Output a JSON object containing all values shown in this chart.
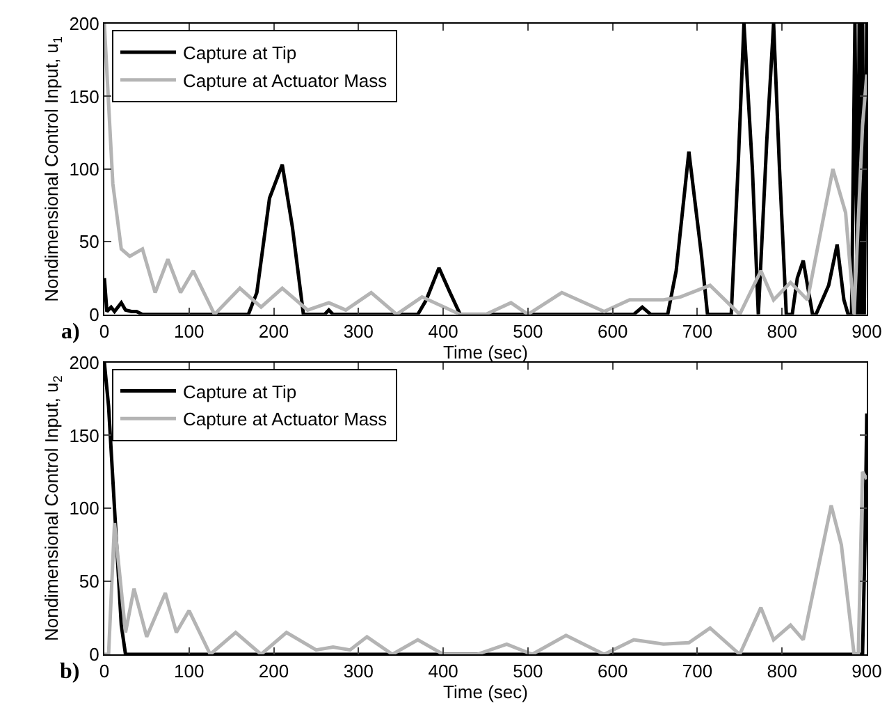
{
  "chart_data": [
    {
      "type": "line",
      "xlabel": "Time (sec)",
      "ylabel": "Nondimensional Control Input, u$_{1}$",
      "annotations": [
        "a)"
      ],
      "xlim": [
        0,
        900
      ],
      "xticks": [
        0,
        100,
        200,
        300,
        400,
        500,
        600,
        700,
        800,
        900
      ],
      "ylim": [
        0,
        200
      ],
      "yticks": [
        0,
        50,
        100,
        150,
        200
      ],
      "grid": false,
      "legend": "top left",
      "marker": "none",
      "line_style": "solid",
      "series": [
        {
          "name": "Capture at Tip",
          "color": "#000000",
          "x": [
            0,
            3,
            8,
            12,
            20,
            25,
            32,
            38,
            45,
            55,
            170,
            180,
            195,
            210,
            222,
            235,
            240,
            260,
            265,
            270,
            370,
            380,
            395,
            408,
            420,
            610,
            625,
            635,
            645,
            665,
            675,
            690,
            705,
            712,
            740,
            748,
            755,
            765,
            772,
            782,
            790,
            797,
            805,
            812,
            818,
            825,
            830,
            836,
            840,
            855,
            865,
            873,
            878,
            882,
            886,
            889,
            891,
            893,
            895,
            897,
            900
          ],
          "values": [
            25,
            2,
            5,
            2,
            8,
            3,
            2,
            2,
            0,
            0,
            0,
            15,
            80,
            103,
            60,
            0,
            0,
            0,
            3,
            0,
            0,
            10,
            32,
            15,
            0,
            0,
            0,
            5,
            0,
            0,
            30,
            112,
            40,
            0,
            0,
            100,
            200,
            100,
            0,
            120,
            200,
            100,
            0,
            0,
            25,
            37,
            20,
            0,
            0,
            20,
            48,
            10,
            0,
            0,
            200,
            0,
            200,
            0,
            200,
            0,
            200
          ]
        },
        {
          "name": "Capture at Actuator Mass",
          "color": "#b4b4b4",
          "x": [
            0,
            10,
            20,
            30,
            45,
            60,
            75,
            90,
            105,
            130,
            160,
            185,
            210,
            240,
            265,
            285,
            315,
            345,
            375,
            420,
            450,
            480,
            500,
            540,
            590,
            620,
            660,
            680,
            715,
            750,
            775,
            790,
            810,
            830,
            860,
            875,
            885,
            895,
            900
          ],
          "values": [
            200,
            90,
            45,
            40,
            45,
            15,
            38,
            15,
            30,
            0,
            18,
            5,
            18,
            3,
            8,
            3,
            15,
            0,
            12,
            0,
            0,
            8,
            0,
            15,
            2,
            10,
            10,
            12,
            20,
            0,
            30,
            10,
            22,
            10,
            100,
            70,
            0,
            130,
            165
          ]
        }
      ]
    },
    {
      "type": "line",
      "xlabel": "Time (sec)",
      "ylabel": "Nondimensional Control Input, u$_{2}$",
      "annotations": [
        "b)"
      ],
      "xlim": [
        0,
        900
      ],
      "xticks": [
        0,
        100,
        200,
        300,
        400,
        500,
        600,
        700,
        800,
        900
      ],
      "ylim": [
        0,
        200
      ],
      "yticks": [
        0,
        50,
        100,
        150,
        200
      ],
      "grid": false,
      "legend": "top left",
      "marker": "none",
      "line_style": "solid",
      "series": [
        {
          "name": "Capture at Tip",
          "color": "#000000",
          "x": [
            0,
            5,
            13,
            20,
            25,
            40,
            895,
            898,
            900
          ],
          "values": [
            200,
            170,
            90,
            20,
            0,
            0,
            0,
            80,
            165
          ]
        },
        {
          "name": "Capture at Actuator Mass",
          "color": "#b4b4b4",
          "x": [
            0,
            5,
            12,
            25,
            35,
            50,
            72,
            85,
            100,
            125,
            155,
            185,
            215,
            250,
            270,
            290,
            310,
            340,
            370,
            400,
            440,
            475,
            505,
            545,
            590,
            625,
            660,
            690,
            715,
            750,
            775,
            790,
            810,
            825,
            858,
            870,
            885,
            890,
            895,
            900
          ],
          "values": [
            0,
            0,
            90,
            15,
            45,
            12,
            42,
            15,
            30,
            0,
            15,
            0,
            15,
            3,
            5,
            3,
            12,
            0,
            10,
            0,
            0,
            7,
            0,
            13,
            0,
            10,
            7,
            8,
            18,
            0,
            32,
            10,
            20,
            10,
            102,
            75,
            0,
            0,
            125,
            120
          ]
        }
      ]
    }
  ]
}
